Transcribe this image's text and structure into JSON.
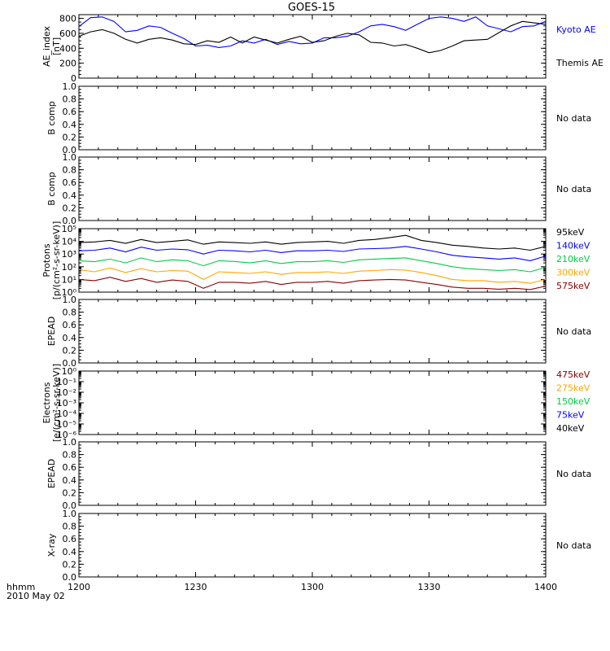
{
  "chart_data": {
    "title": "GOES-15",
    "type": "line",
    "time_axis": {
      "ticks": [
        "1200",
        "1230",
        "1300",
        "1330",
        "1400"
      ],
      "range_minutes": [
        0,
        120
      ],
      "label_line1": "hhmm",
      "label_line2": "2010 May 02"
    },
    "panels": [
      {
        "id": "ae",
        "ylabel_lines": [
          "AE_index",
          "[nT]"
        ],
        "scale": "linear",
        "ylim": [
          0,
          850
        ],
        "yticks": [
          "0",
          "200",
          "400",
          "600",
          "800"
        ],
        "series": [
          {
            "name": "Kyoto AE",
            "color": "#0000ff",
            "x": [
              0,
              3,
              6,
              9,
              12,
              15,
              18,
              21,
              24,
              27,
              30,
              33,
              36,
              39,
              42,
              45,
              48,
              51,
              54,
              57,
              60,
              63,
              66,
              69,
              72,
              75,
              78,
              81,
              84,
              87,
              90,
              93,
              96,
              99,
              102,
              105,
              108,
              111,
              114,
              117,
              120
            ],
            "y": [
              690,
              810,
              820,
              760,
              620,
              640,
              700,
              680,
              600,
              530,
              430,
              440,
              410,
              430,
              500,
              470,
              520,
              450,
              490,
              460,
              470,
              540,
              540,
              560,
              620,
              700,
              720,
              690,
              640,
              720,
              800,
              820,
              800,
              760,
              820,
              700,
              660,
              620,
              690,
              700,
              760
            ]
          },
          {
            "name": "Themis AE",
            "color": "#000000",
            "x": [
              0,
              3,
              6,
              9,
              12,
              15,
              18,
              21,
              24,
              27,
              30,
              33,
              36,
              39,
              42,
              45,
              48,
              51,
              54,
              57,
              60,
              63,
              66,
              69,
              72,
              75,
              78,
              81,
              84,
              87,
              90,
              93,
              96,
              99,
              102,
              105,
              108,
              111,
              114,
              117,
              120
            ],
            "y": [
              560,
              620,
              650,
              600,
              520,
              470,
              520,
              540,
              510,
              460,
              450,
              500,
              480,
              550,
              470,
              550,
              510,
              470,
              520,
              560,
              480,
              500,
              560,
              600,
              580,
              480,
              470,
              430,
              450,
              400,
              340,
              370,
              430,
              500,
              510,
              520,
              610,
              700,
              760,
              740,
              720
            ]
          }
        ]
      },
      {
        "id": "b1",
        "ylabel_lines": [
          "B comp"
        ],
        "scale": "linear",
        "ylim": [
          0,
          1
        ],
        "yticks": [
          "0.0",
          "0.2",
          "0.4",
          "0.6",
          "0.8",
          "1.0"
        ],
        "no_data": "No data"
      },
      {
        "id": "b2",
        "ylabel_lines": [
          "B comp"
        ],
        "scale": "linear",
        "ylim": [
          0,
          1
        ],
        "yticks": [
          "0.0",
          "0.2",
          "0.4",
          "0.6",
          "0.8",
          "1.0"
        ],
        "no_data": "No data"
      },
      {
        "id": "protons",
        "ylabel_lines": [
          "Protons",
          "[p/(cm²-s-sr-keV)]"
        ],
        "scale": "log",
        "ylim_exp": [
          0,
          5
        ],
        "yticks": [
          "10⁰",
          "10¹",
          "10²",
          "10³",
          "10⁴",
          "10⁵"
        ],
        "series": [
          {
            "name": "95keV",
            "color": "#000000",
            "x": [
              0,
              4,
              8,
              12,
              16,
              20,
              24,
              28,
              32,
              36,
              40,
              44,
              48,
              52,
              56,
              60,
              64,
              68,
              72,
              76,
              80,
              84,
              88,
              92,
              96,
              100,
              104,
              108,
              112,
              116,
              120
            ],
            "y": [
              8000,
              9000,
              12000,
              7000,
              14000,
              8000,
              10000,
              13000,
              6000,
              9000,
              8000,
              7000,
              9000,
              6000,
              8000,
              9000,
              10000,
              7000,
              12000,
              14000,
              20000,
              30000,
              12000,
              8000,
              5000,
              4000,
              3000,
              2500,
              3000,
              2000,
              4000
            ]
          },
          {
            "name": "140keV",
            "color": "#0000ff",
            "x": [
              0,
              4,
              8,
              12,
              16,
              20,
              24,
              28,
              32,
              36,
              40,
              44,
              48,
              52,
              56,
              60,
              64,
              68,
              72,
              76,
              80,
              84,
              88,
              92,
              96,
              100,
              104,
              108,
              112,
              116,
              120
            ],
            "y": [
              1800,
              2000,
              3000,
              1500,
              3500,
              2000,
              2500,
              2200,
              1000,
              2000,
              1800,
              1500,
              2000,
              1300,
              1800,
              1800,
              2000,
              1600,
              2500,
              2700,
              3000,
              4000,
              2500,
              1500,
              800,
              600,
              500,
              400,
              500,
              300,
              700
            ]
          },
          {
            "name": "210keV",
            "color": "#00cc44",
            "x": [
              0,
              4,
              8,
              12,
              16,
              20,
              24,
              28,
              32,
              36,
              40,
              44,
              48,
              52,
              56,
              60,
              64,
              68,
              72,
              76,
              80,
              84,
              88,
              92,
              96,
              100,
              104,
              108,
              112,
              116,
              120
            ],
            "y": [
              300,
              250,
              400,
              200,
              500,
              250,
              350,
              300,
              120,
              300,
              260,
              200,
              300,
              180,
              250,
              250,
              300,
              220,
              350,
              400,
              450,
              500,
              300,
              180,
              100,
              70,
              60,
              50,
              60,
              40,
              90
            ]
          },
          {
            "name": "300keV",
            "color": "#ffa500",
            "x": [
              0,
              4,
              8,
              12,
              16,
              20,
              24,
              28,
              32,
              36,
              40,
              44,
              48,
              52,
              56,
              60,
              64,
              68,
              72,
              76,
              80,
              84,
              88,
              92,
              96,
              100,
              104,
              108,
              112,
              116,
              120
            ],
            "y": [
              60,
              40,
              80,
              35,
              70,
              40,
              50,
              45,
              10,
              40,
              35,
              30,
              40,
              25,
              35,
              35,
              40,
              30,
              45,
              50,
              60,
              55,
              35,
              20,
              10,
              8,
              8,
              6,
              7,
              5,
              10
            ]
          },
          {
            "name": "575keV",
            "color": "#8b0000",
            "x": [
              0,
              4,
              8,
              12,
              16,
              20,
              24,
              28,
              32,
              36,
              40,
              44,
              48,
              52,
              56,
              60,
              64,
              68,
              72,
              76,
              80,
              84,
              88,
              92,
              96,
              100,
              104,
              108,
              112,
              116,
              120
            ],
            "y": [
              10,
              8,
              15,
              7,
              12,
              6,
              9,
              7,
              2,
              6,
              6,
              5,
              7,
              4,
              6,
              6,
              7,
              5,
              8,
              9,
              10,
              9,
              6,
              4,
              2.5,
              2,
              2,
              1.7,
              2,
              1.6,
              3
            ]
          }
        ]
      },
      {
        "id": "epead1",
        "ylabel_lines": [
          "EPEAD"
        ],
        "scale": "linear",
        "ylim": [
          0,
          1
        ],
        "yticks": [
          "0.0",
          "0.2",
          "0.4",
          "0.6",
          "0.8",
          "1.0"
        ],
        "no_data": "No data"
      },
      {
        "id": "electrons",
        "ylabel_lines": [
          "Electrons",
          "[e/(cm²-s-sr-keV)]"
        ],
        "scale": "log",
        "ylim_exp": [
          -6,
          0
        ],
        "yticks": [
          "10⁻⁶",
          "10⁻⁵",
          "10⁻⁴",
          "10⁻³",
          "10⁻²",
          "10⁻¹",
          "10⁰"
        ],
        "series": [
          {
            "name": "475keV",
            "color": "#8b0000"
          },
          {
            "name": "275keV",
            "color": "#ffa500"
          },
          {
            "name": "150keV",
            "color": "#00cc44"
          },
          {
            "name": "75keV",
            "color": "#0000ff"
          },
          {
            "name": "40keV",
            "color": "#000000"
          }
        ]
      },
      {
        "id": "epead2",
        "ylabel_lines": [
          "EPEAD"
        ],
        "scale": "linear",
        "ylim": [
          0,
          1
        ],
        "yticks": [
          "0.0",
          "0.2",
          "0.4",
          "0.6",
          "0.8",
          "1.0"
        ],
        "no_data": "No data"
      },
      {
        "id": "xray",
        "ylabel_lines": [
          "X-ray"
        ],
        "scale": "linear",
        "ylim": [
          0,
          1
        ],
        "yticks": [
          "0.0",
          "0.2",
          "0.4",
          "0.6",
          "0.8",
          "1.0"
        ],
        "no_data": "No data"
      }
    ]
  }
}
